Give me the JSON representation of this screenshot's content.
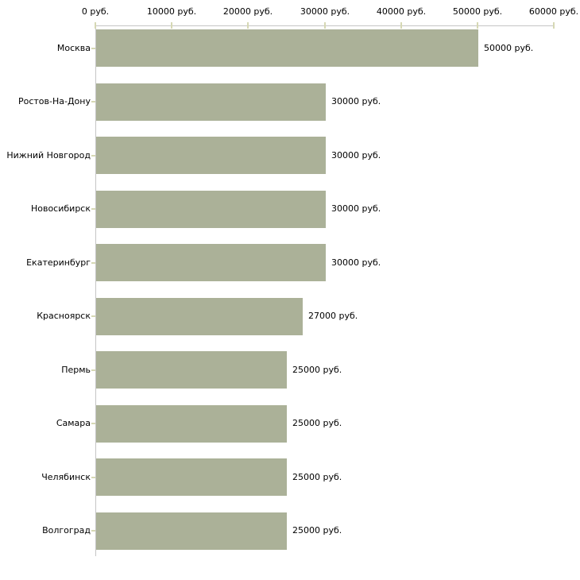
{
  "chart_data": {
    "type": "bar",
    "orientation": "horizontal",
    "title": "",
    "xlabel": "",
    "ylabel": "",
    "unit": "руб.",
    "categories": [
      "Москва",
      "Ростов-На-Дону",
      "Нижний Новгород",
      "Новосибирск",
      "Екатеринбург",
      "Красноярск",
      "Пермь",
      "Самара",
      "Челябинск",
      "Волгоград"
    ],
    "values": [
      50000,
      30000,
      30000,
      30000,
      30000,
      27000,
      25000,
      25000,
      25000,
      25000
    ],
    "value_labels": [
      "50000 руб.",
      "30000 руб.",
      "30000 руб.",
      "30000 руб.",
      "30000 руб.",
      "27000 руб.",
      "25000 руб.",
      "25000 руб.",
      "25000 руб.",
      "25000 руб."
    ],
    "xlim": [
      0,
      60000
    ],
    "x_tick_values": [
      0,
      10000,
      20000,
      30000,
      40000,
      50000,
      60000
    ],
    "x_tick_labels": [
      "0 руб.",
      "10000 руб.",
      "20000 руб.",
      "30000 руб.",
      "40000 руб.",
      "50000 руб.",
      "60000 руб."
    ],
    "grid": false,
    "legend": null,
    "colors": {
      "bar": "#abb198",
      "axis_line": "#c6c6c6",
      "tick_mark": "#d6d8b4",
      "label_text": "#000000",
      "background": "#ffffff"
    }
  }
}
